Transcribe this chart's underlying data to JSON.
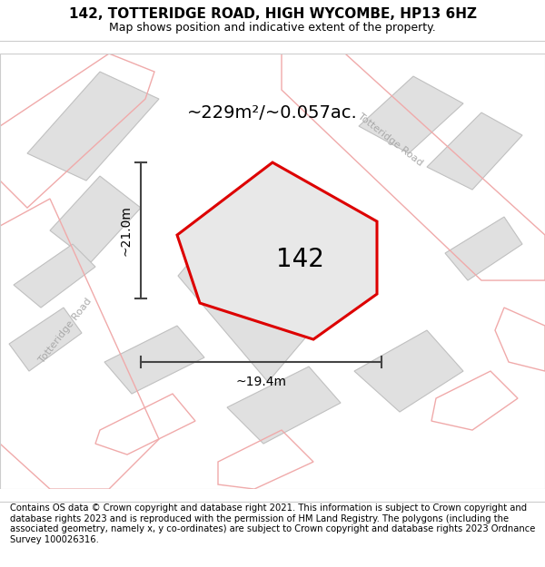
{
  "title": "142, TOTTERIDGE ROAD, HIGH WYCOMBE, HP13 6HZ",
  "subtitle": "Map shows position and indicative extent of the property.",
  "area_text": "~229m²/~0.057ac.",
  "width_label": "~19.4m",
  "height_label": "~21.0m",
  "property_number": "142",
  "footer": "Contains OS data © Crown copyright and database right 2021. This information is subject to Crown copyright and database rights 2023 and is reproduced with the permission of HM Land Registry. The polygons (including the associated geometry, namely x, y co-ordinates) are subject to Crown copyright and database rights 2023 Ordnance Survey 100026316.",
  "bg_color": "#ffffff",
  "map_bg_color": "#ffffff",
  "parcel_fill": "#e0e0e0",
  "parcel_edge": "#b8b8b8",
  "road_pink": "#f0aaaa",
  "property_fill": "#e8e8e8",
  "property_outline": "#dd0000",
  "dim_color": "#444444",
  "road_label_color": "#aaaaaa",
  "title_fontsize": 11,
  "subtitle_fontsize": 9,
  "number_fontsize": 20,
  "area_fontsize": 14,
  "dim_fontsize": 10,
  "road_fontsize": 8,
  "footer_fontsize": 7.2
}
